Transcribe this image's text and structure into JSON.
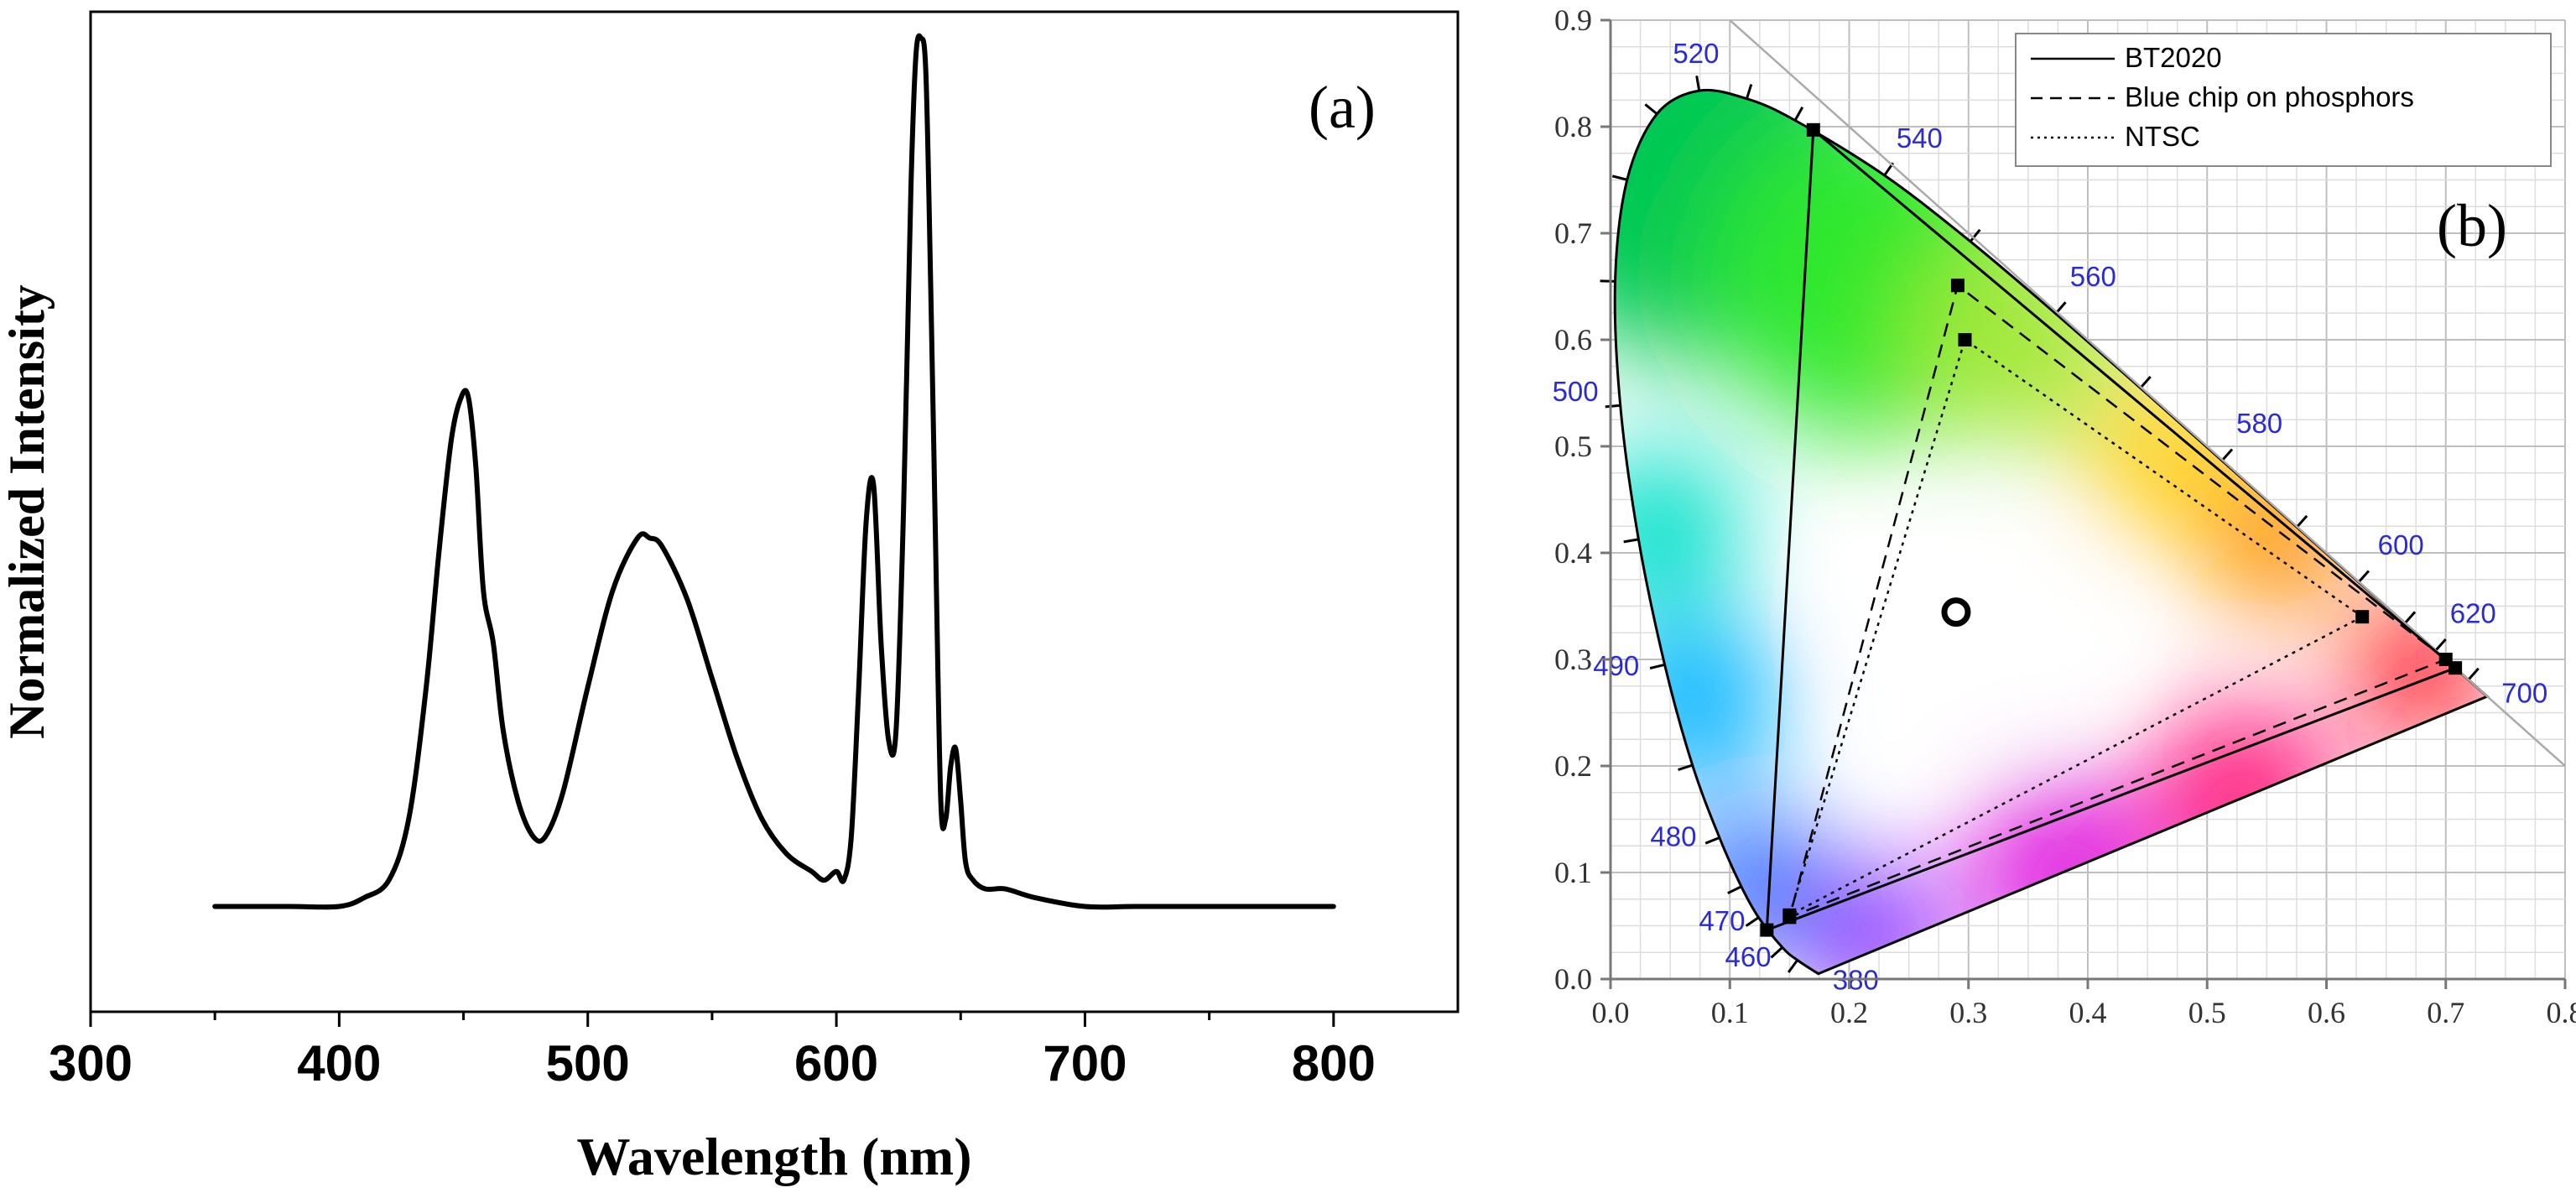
{
  "chart_data": [
    {
      "panel": "a",
      "type": "line",
      "panel_label": "(a)",
      "xlabel": "Wavelength (nm)",
      "ylabel": "Normalized Intensity",
      "xlim": [
        300,
        850
      ],
      "ylim": [
        -0.12,
        1.02
      ],
      "xticks": [
        300,
        400,
        500,
        600,
        700,
        800
      ],
      "y_tick_labels": false,
      "grid": false,
      "color": "#000000",
      "series": [
        {
          "x": [
            350,
            380,
            400,
            410,
            420,
            428,
            435,
            440,
            445,
            449,
            452,
            455,
            458,
            462,
            466,
            472,
            478,
            483,
            490,
            500,
            510,
            520,
            525,
            530,
            540,
            550,
            560,
            570,
            580,
            590,
            595,
            600,
            603,
            606,
            609,
            612,
            615,
            618,
            621,
            624,
            627,
            630,
            632,
            634,
            636,
            638,
            640,
            642,
            644,
            646,
            648,
            650,
            652,
            655,
            660,
            668,
            680,
            700,
            720,
            750,
            800
          ],
          "y": [
            0.0,
            0.0,
            0.0,
            0.01,
            0.03,
            0.1,
            0.25,
            0.4,
            0.53,
            0.58,
            0.58,
            0.5,
            0.36,
            0.3,
            0.2,
            0.12,
            0.08,
            0.08,
            0.13,
            0.25,
            0.36,
            0.42,
            0.42,
            0.41,
            0.35,
            0.26,
            0.17,
            0.1,
            0.06,
            0.04,
            0.03,
            0.04,
            0.03,
            0.08,
            0.25,
            0.44,
            0.48,
            0.3,
            0.19,
            0.2,
            0.45,
            0.82,
            0.97,
            0.99,
            0.95,
            0.7,
            0.4,
            0.12,
            0.1,
            0.16,
            0.18,
            0.12,
            0.05,
            0.03,
            0.02,
            0.02,
            0.01,
            0.0,
            0.0,
            0.0,
            0.0
          ]
        }
      ]
    },
    {
      "panel": "b",
      "type": "scatter",
      "panel_label": "(b)",
      "xlim": [
        0,
        0.8
      ],
      "ylim": [
        0,
        0.9
      ],
      "xticks": [
        0.0,
        0.1,
        0.2,
        0.3,
        0.4,
        0.5,
        0.6,
        0.7,
        0.8
      ],
      "yticks": [
        0.0,
        0.1,
        0.2,
        0.3,
        0.4,
        0.5,
        0.6,
        0.7,
        0.8,
        0.9
      ],
      "grid": true,
      "legend_position": "top-right",
      "wavelength_label_color": "#2b2bd6",
      "spectral_locus": [
        {
          "nm": 380,
          "x": 0.1741,
          "y": 0.005
        },
        {
          "nm": 450,
          "x": 0.1566,
          "y": 0.0177
        },
        {
          "nm": 460,
          "x": 0.144,
          "y": 0.0297
        },
        {
          "nm": 470,
          "x": 0.1241,
          "y": 0.0578
        },
        {
          "nm": 475,
          "x": 0.1096,
          "y": 0.0868
        },
        {
          "nm": 480,
          "x": 0.0913,
          "y": 0.1327
        },
        {
          "nm": 485,
          "x": 0.0687,
          "y": 0.2007
        },
        {
          "nm": 490,
          "x": 0.0454,
          "y": 0.295
        },
        {
          "nm": 495,
          "x": 0.0235,
          "y": 0.4127
        },
        {
          "nm": 500,
          "x": 0.0082,
          "y": 0.5384
        },
        {
          "nm": 505,
          "x": 0.0039,
          "y": 0.6548
        },
        {
          "nm": 510,
          "x": 0.0139,
          "y": 0.7502
        },
        {
          "nm": 515,
          "x": 0.0389,
          "y": 0.812
        },
        {
          "nm": 520,
          "x": 0.0743,
          "y": 0.8338
        },
        {
          "nm": 525,
          "x": 0.1142,
          "y": 0.8262
        },
        {
          "nm": 530,
          "x": 0.1547,
          "y": 0.8059
        },
        {
          "nm": 540,
          "x": 0.2296,
          "y": 0.7543
        },
        {
          "nm": 550,
          "x": 0.3016,
          "y": 0.6923
        },
        {
          "nm": 560,
          "x": 0.3731,
          "y": 0.6245
        },
        {
          "nm": 570,
          "x": 0.4441,
          "y": 0.5547
        },
        {
          "nm": 580,
          "x": 0.5125,
          "y": 0.4866
        },
        {
          "nm": 590,
          "x": 0.5752,
          "y": 0.4242
        },
        {
          "nm": 600,
          "x": 0.627,
          "y": 0.3725
        },
        {
          "nm": 610,
          "x": 0.6658,
          "y": 0.334
        },
        {
          "nm": 620,
          "x": 0.6915,
          "y": 0.3083
        },
        {
          "nm": 640,
          "x": 0.719,
          "y": 0.2809
        },
        {
          "nm": 700,
          "x": 0.7347,
          "y": 0.2653
        }
      ],
      "wavelength_labels": [
        {
          "label": "380",
          "x": 0.1741,
          "y": 0.005,
          "dx": 0.012,
          "dy": -0.015
        },
        {
          "label": "460",
          "x": 0.144,
          "y": 0.0297,
          "dx": -0.048,
          "dy": -0.018
        },
        {
          "label": "470",
          "x": 0.1241,
          "y": 0.0578,
          "dx": -0.05,
          "dy": -0.012
        },
        {
          "label": "480",
          "x": 0.0913,
          "y": 0.1327,
          "dx": -0.058,
          "dy": -0.008
        },
        {
          "label": "490",
          "x": 0.0454,
          "y": 0.295,
          "dx": -0.06,
          "dy": -0.01
        },
        {
          "label": "500",
          "x": 0.0082,
          "y": 0.5384,
          "dx": -0.057,
          "dy": 0.004
        },
        {
          "label": "520",
          "x": 0.0743,
          "y": 0.8338,
          "dx": -0.022,
          "dy": 0.026
        },
        {
          "label": "540",
          "x": 0.2296,
          "y": 0.7543,
          "dx": 0.01,
          "dy": 0.026
        },
        {
          "label": "560",
          "x": 0.3731,
          "y": 0.6245,
          "dx": 0.012,
          "dy": 0.026
        },
        {
          "label": "580",
          "x": 0.5125,
          "y": 0.4866,
          "dx": 0.012,
          "dy": 0.026
        },
        {
          "label": "600",
          "x": 0.627,
          "y": 0.3725,
          "dx": 0.016,
          "dy": 0.026
        },
        {
          "label": "620",
          "x": 0.6915,
          "y": 0.3083,
          "dx": 0.012,
          "dy": 0.026
        },
        {
          "label": "700",
          "x": 0.7347,
          "y": 0.2653,
          "dx": 0.012,
          "dy": -0.006
        }
      ],
      "series": [
        {
          "name": "BT2020",
          "style": "solid",
          "points": [
            [
              0.708,
              0.292
            ],
            [
              0.17,
              0.797
            ],
            [
              0.131,
              0.046
            ]
          ]
        },
        {
          "name": "Blue chip on phosphors",
          "style": "dashed",
          "points": [
            [
              0.7,
              0.3
            ],
            [
              0.291,
              0.651
            ],
            [
              0.15,
              0.058
            ]
          ]
        },
        {
          "name": "NTSC",
          "style": "dotted",
          "points": [
            [
              0.63,
              0.34
            ],
            [
              0.297,
              0.6
            ],
            [
              0.15,
              0.06
            ]
          ]
        }
      ],
      "white_point": {
        "x": 0.2896,
        "y": 0.3444
      },
      "diagonal_line": {
        "x": [
          0.1,
          0.8
        ],
        "y": [
          0.9,
          0.2
        ]
      }
    }
  ]
}
